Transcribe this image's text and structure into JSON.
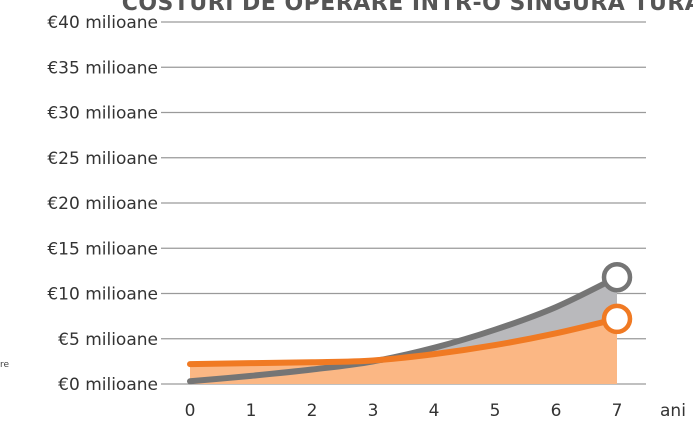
{
  "chart_data": {
    "type": "area",
    "title": "COSTURI DE OPERARE INTR-O SINGURA TURA",
    "xlabel": "ani",
    "fragment_left": "re",
    "x": [
      0,
      1,
      2,
      3,
      4,
      5,
      6,
      7
    ],
    "x_tick_labels": [
      "0",
      "1",
      "2",
      "3",
      "4",
      "5",
      "6",
      "7"
    ],
    "ylim": [
      0,
      40
    ],
    "y_ticks": [
      0,
      5,
      10,
      15,
      20,
      25,
      30,
      35,
      40
    ],
    "y_tick_labels": [
      "€0 milioane",
      "€5 milioane",
      "€10 milioane",
      "€15 milioane",
      "€20 milioane",
      "€25 milioane",
      "€30 milioane",
      "€35 milioane",
      "€40 milioane"
    ],
    "grid": true,
    "series": [
      {
        "values": [
          0.3,
          0.9,
          1.6,
          2.5,
          4.0,
          6.0,
          8.5,
          11.8
        ],
        "color": "#757575",
        "fill": "#b9b9bc"
      },
      {
        "values": [
          2.2,
          2.3,
          2.4,
          2.6,
          3.3,
          4.3,
          5.6,
          7.2
        ],
        "color": "#f07a23",
        "fill": "#fbb784"
      }
    ]
  }
}
